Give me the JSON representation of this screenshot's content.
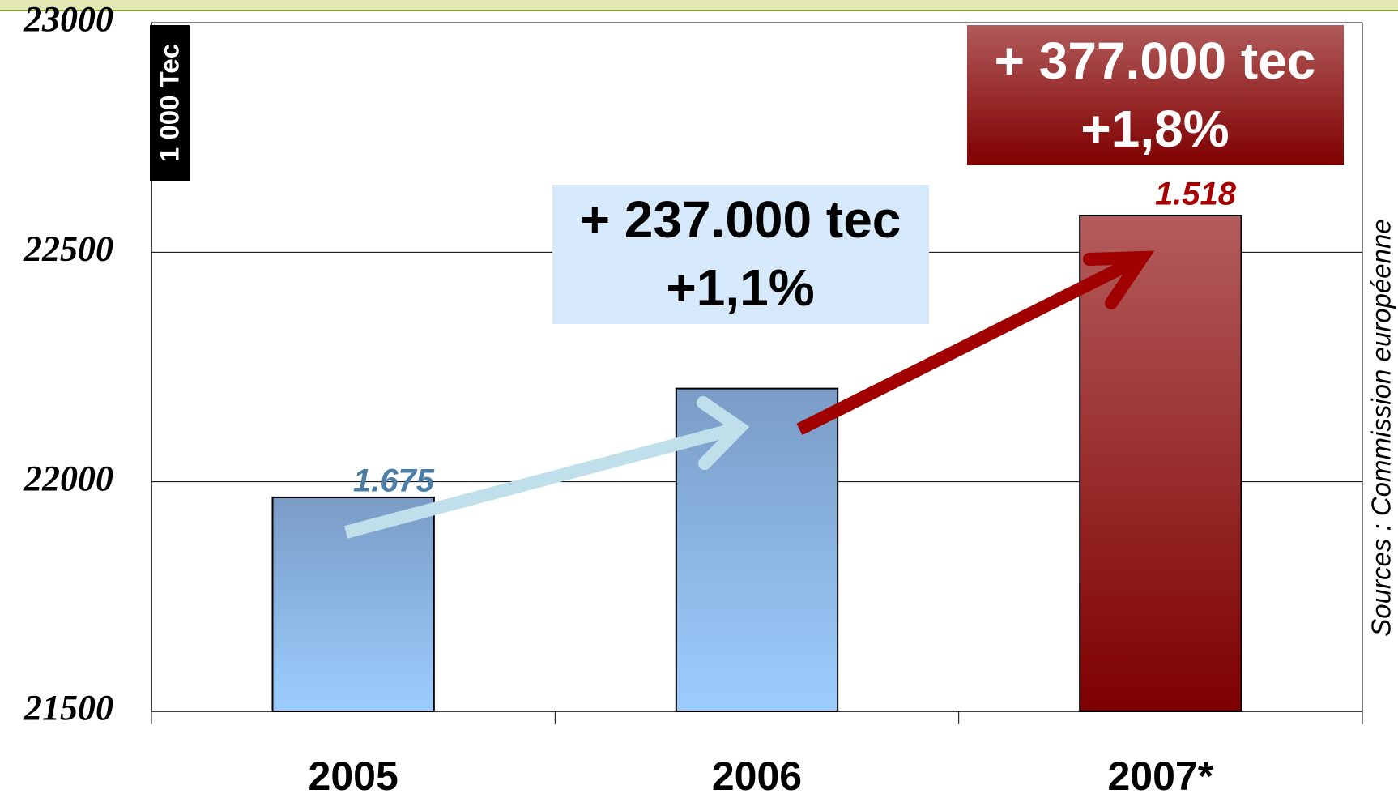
{
  "chart_data": {
    "type": "bar",
    "categories": [
      "2005",
      "2006",
      "2007*"
    ],
    "values": [
      21966,
      22203,
      22580
    ],
    "colors": [
      [
        "#7a9cc6",
        "#9ccdff"
      ],
      [
        "#7a9cc6",
        "#9ccdff"
      ],
      [
        "#b45c5c",
        "#7e0000"
      ]
    ],
    "ylim": [
      21500,
      23000
    ],
    "yticks": [
      21500,
      22000,
      22500,
      23000
    ],
    "grid": true,
    "annotations": {
      "unit": "1 000 Tec",
      "label_2005": "1.675",
      "label_2007": "1.518",
      "growth_2006_amount": "+ 237.000 tec",
      "growth_2006_pct": "+1,1%",
      "growth_2007_amount": "+ 377.000 tec",
      "growth_2007_pct": "+1,8%",
      "source": "Sources : Commission européenne"
    }
  }
}
